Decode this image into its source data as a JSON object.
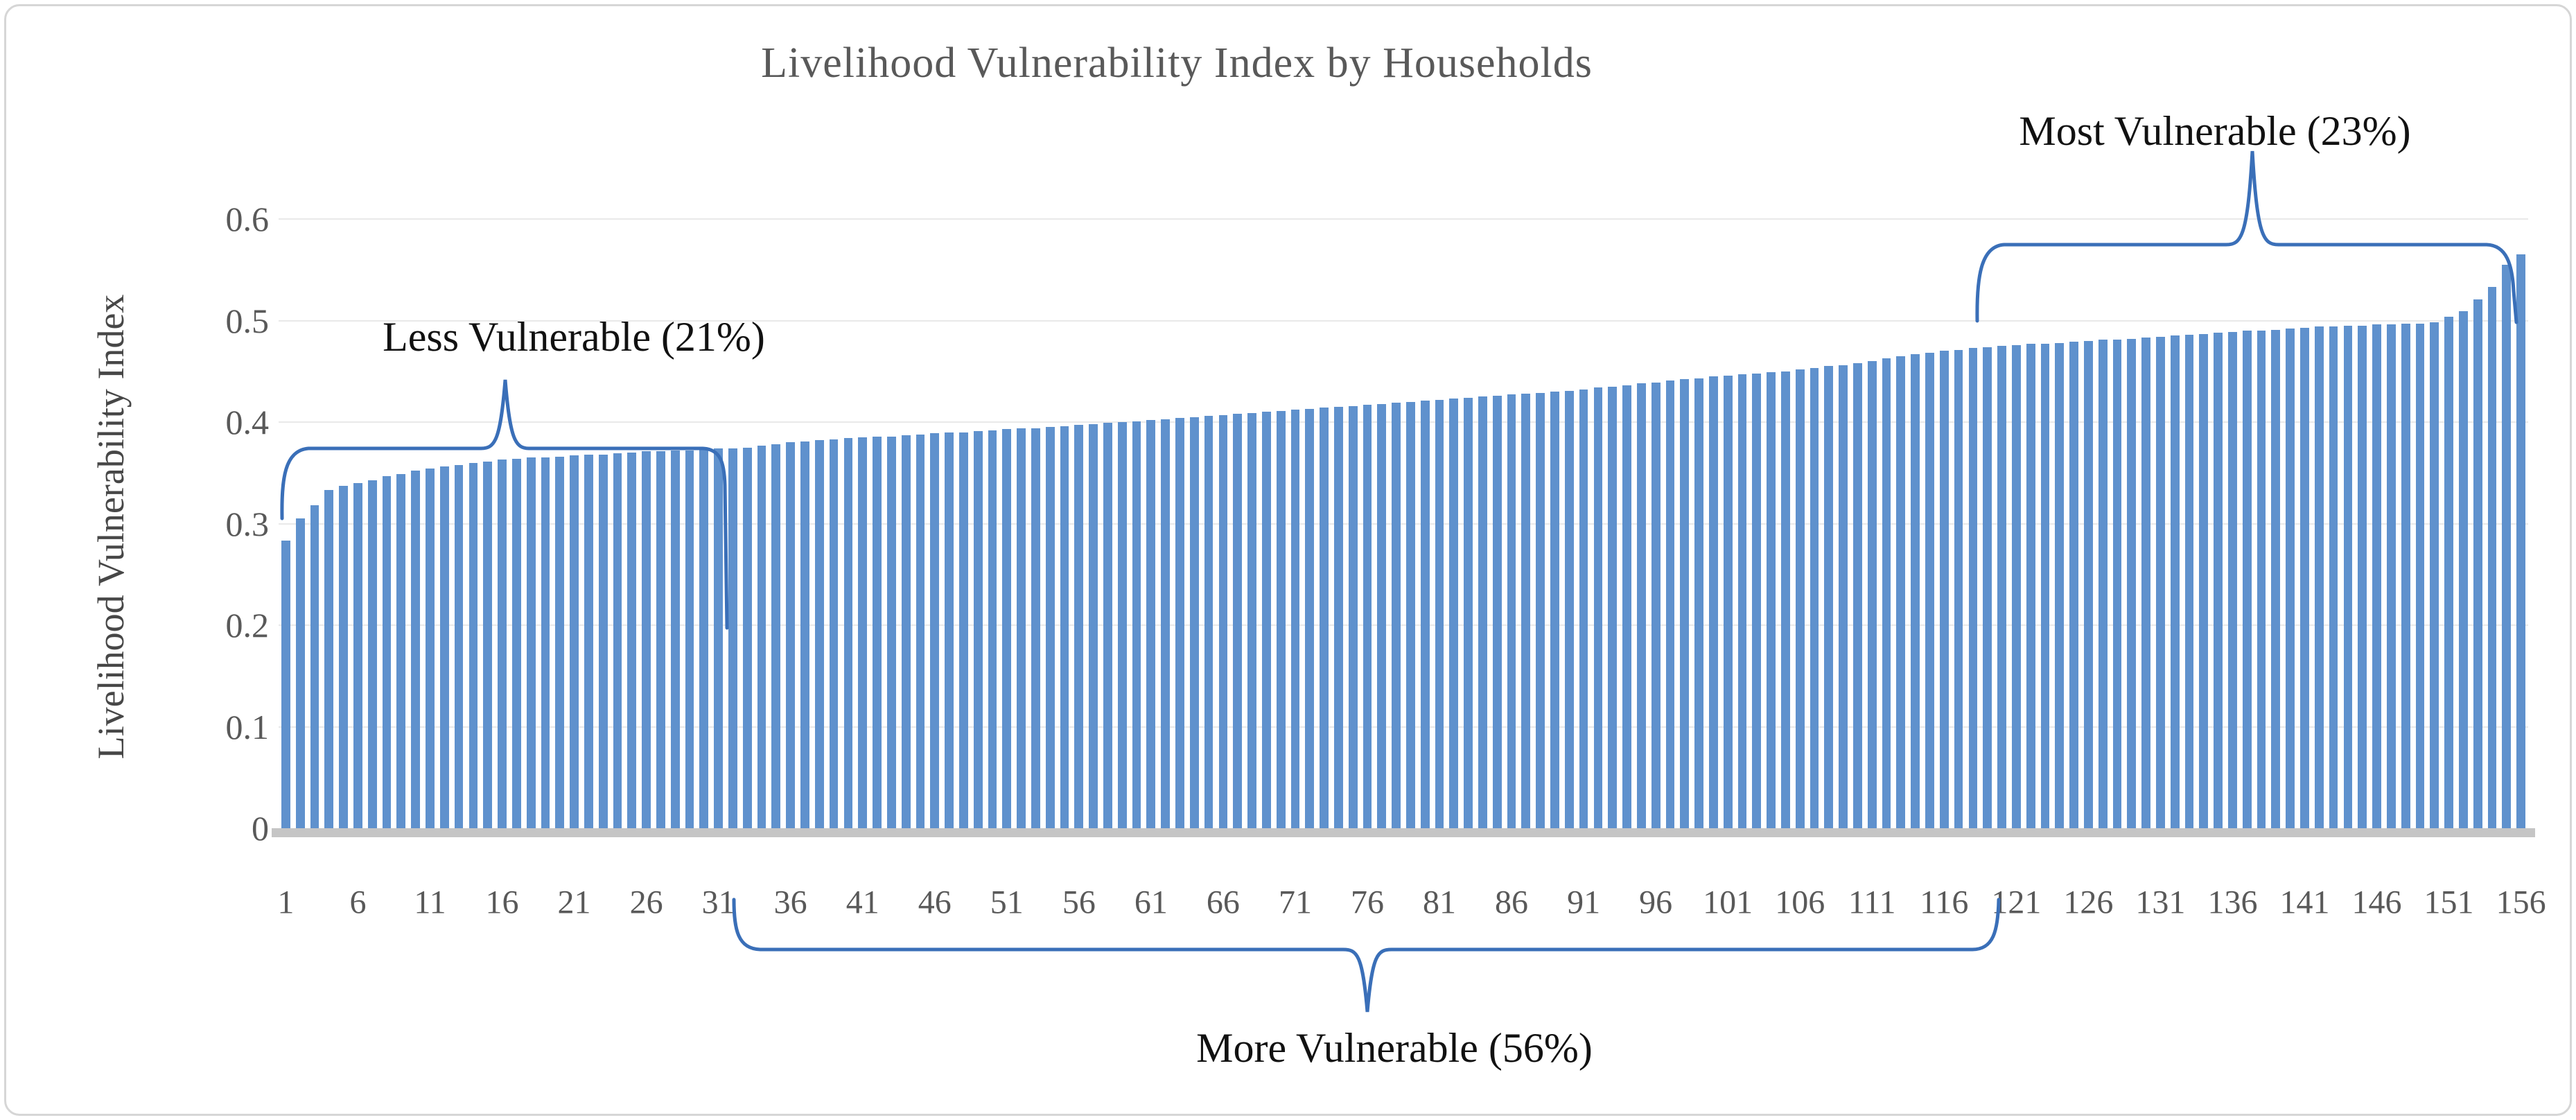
{
  "figure": {
    "title": "Livelihood Vulnerability Index by Households",
    "y_axis_title": "Livelihood Vulnerability Index"
  },
  "annotations": {
    "less": "Less Vulnerable (21%)",
    "more": "More Vulnerable (56%)",
    "most": "Most Vulnerable (23%)"
  },
  "colors": {
    "bar": "#5f91cd",
    "brace": "#3a6fb8",
    "title_text": "#595959",
    "axis_text": "#595959",
    "annotation_text": "#111111",
    "gridline": "#e9e9e9",
    "axis_baseline": "#c5c5c5"
  },
  "chart_data": {
    "type": "bar",
    "title": "Livelihood Vulnerability Index by Households",
    "xlabel": "",
    "ylabel": "Livelihood Vulnerability Index",
    "ylim": [
      0,
      0.6
    ],
    "grid": true,
    "legend": "none",
    "n_bars": 156,
    "y_tick_labels": [
      "0",
      "0.1",
      "0.2",
      "0.3",
      "0.4",
      "0.5",
      "0.6"
    ],
    "y_tick_values": [
      0,
      0.1,
      0.2,
      0.3,
      0.4,
      0.5,
      0.6
    ],
    "x_tick_labels": [
      "1",
      "6",
      "11",
      "16",
      "21",
      "26",
      "31",
      "36",
      "41",
      "46",
      "51",
      "56",
      "61",
      "66",
      "71",
      "76",
      "81",
      "86",
      "91",
      "96",
      "101",
      "106",
      "111",
      "116",
      "121",
      "126",
      "131",
      "136",
      "141",
      "146",
      "151",
      "156"
    ],
    "segments": [
      {
        "label": "Less Vulnerable (21%)",
        "bars_start": 1,
        "bars_end": 33
      },
      {
        "label": "More Vulnerable (56%)",
        "bars_start": 34,
        "bars_end": 120
      },
      {
        "label": "Most Vulnerable (23%)",
        "bars_start": 121,
        "bars_end": 156
      }
    ],
    "values": [
      0.283,
      0.305,
      0.318,
      0.333,
      0.337,
      0.34,
      0.343,
      0.347,
      0.349,
      0.352,
      0.354,
      0.356,
      0.358,
      0.36,
      0.361,
      0.363,
      0.364,
      0.365,
      0.365,
      0.366,
      0.367,
      0.368,
      0.368,
      0.369,
      0.37,
      0.371,
      0.371,
      0.372,
      0.372,
      0.373,
      0.374,
      0.374,
      0.375,
      0.377,
      0.378,
      0.38,
      0.381,
      0.382,
      0.383,
      0.384,
      0.385,
      0.386,
      0.386,
      0.387,
      0.388,
      0.389,
      0.39,
      0.39,
      0.391,
      0.392,
      0.393,
      0.394,
      0.394,
      0.395,
      0.396,
      0.397,
      0.398,
      0.399,
      0.4,
      0.401,
      0.402,
      0.403,
      0.404,
      0.405,
      0.406,
      0.407,
      0.408,
      0.409,
      0.41,
      0.411,
      0.412,
      0.413,
      0.414,
      0.415,
      0.416,
      0.417,
      0.418,
      0.419,
      0.42,
      0.421,
      0.422,
      0.423,
      0.424,
      0.425,
      0.426,
      0.427,
      0.428,
      0.429,
      0.43,
      0.431,
      0.432,
      0.434,
      0.435,
      0.436,
      0.438,
      0.439,
      0.441,
      0.442,
      0.443,
      0.445,
      0.446,
      0.447,
      0.448,
      0.449,
      0.45,
      0.452,
      0.453,
      0.455,
      0.456,
      0.458,
      0.46,
      0.463,
      0.465,
      0.467,
      0.468,
      0.47,
      0.471,
      0.473,
      0.474,
      0.475,
      0.476,
      0.477,
      0.477,
      0.478,
      0.479,
      0.48,
      0.481,
      0.481,
      0.482,
      0.483,
      0.484,
      0.485,
      0.486,
      0.487,
      0.488,
      0.489,
      0.49,
      0.49,
      0.491,
      0.492,
      0.493,
      0.494,
      0.494,
      0.495,
      0.495,
      0.496,
      0.496,
      0.497,
      0.497,
      0.498,
      0.504,
      0.509,
      0.521,
      0.533,
      0.555,
      0.565
    ]
  }
}
